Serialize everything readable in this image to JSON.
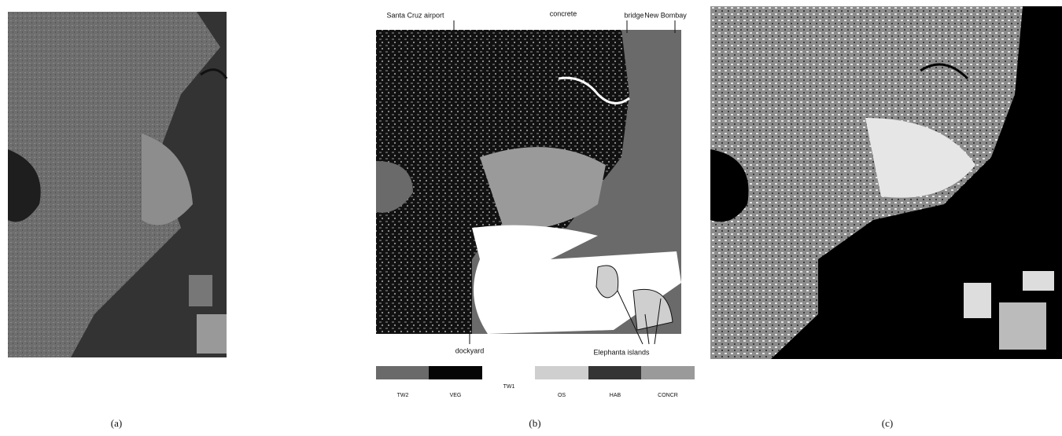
{
  "panels": [
    {
      "label": "(a)"
    },
    {
      "label": "(b)",
      "annotations": [
        "Santa Cruz airport",
        "concrete",
        "bridge",
        "New Bombay",
        "dockyard",
        "Elephanta islands"
      ],
      "legend": [
        {
          "label": "TW2",
          "color": "#6a6a6a"
        },
        {
          "label": "VEG",
          "color": "#050505"
        },
        {
          "label": "TW1",
          "color": "#ffffff"
        },
        {
          "label": "OS",
          "color": "#cfcfcf"
        },
        {
          "label": "HAB",
          "color": "#343434"
        },
        {
          "label": "CONCR",
          "color": "#9a9a9a"
        }
      ]
    },
    {
      "label": "(c)"
    }
  ]
}
